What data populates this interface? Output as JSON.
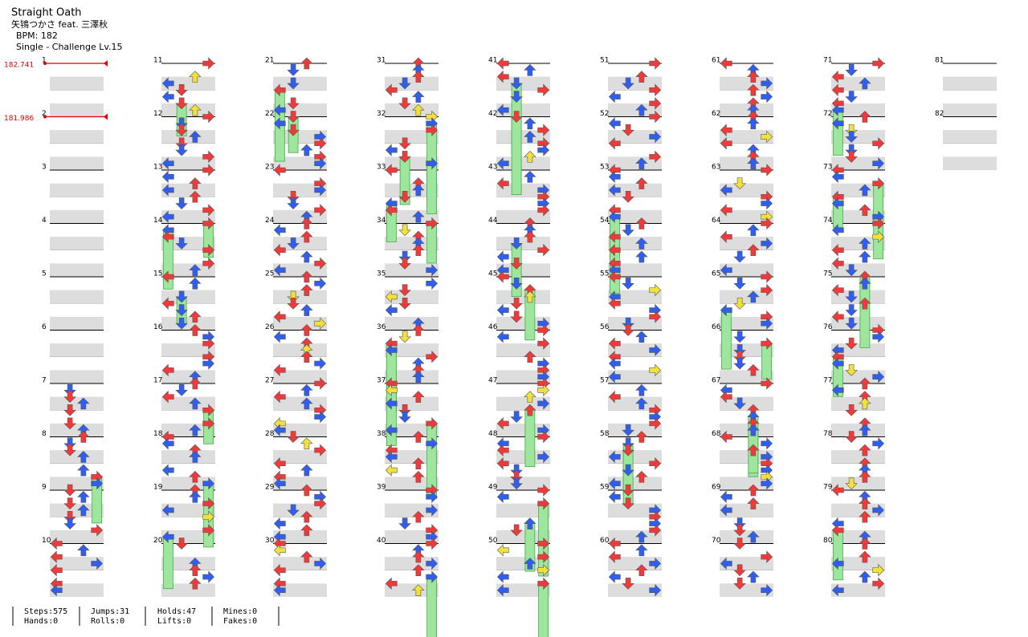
{
  "header": {
    "title": "Straight Oath",
    "artist": "矢鴇つかさ feat. 三澤秋",
    "bpm": "BPM: 182",
    "chart": "Single - Challenge  Lv.15"
  },
  "bpm_changes": [
    "182.741",
    "181.986"
  ],
  "measures": [
    1,
    2,
    3,
    4,
    5,
    6,
    7,
    8,
    9,
    10,
    11,
    12,
    13,
    14,
    15,
    16,
    17,
    18,
    19,
    20,
    21,
    22,
    23,
    24,
    25,
    26,
    27,
    28,
    29,
    30,
    31,
    32,
    33,
    34,
    35,
    36,
    37,
    38,
    39,
    40,
    41,
    42,
    43,
    44,
    45,
    46,
    47,
    48,
    49,
    50,
    51,
    52,
    53,
    54,
    55,
    56,
    57,
    58,
    59,
    60,
    61,
    62,
    63,
    64,
    65,
    66,
    67,
    68,
    69,
    70,
    71,
    72,
    73,
    74,
    75,
    76,
    77,
    78,
    79,
    80,
    81,
    82
  ],
  "stats": [
    [
      "Steps:575",
      "Hands:0"
    ],
    [
      "Jumps:31",
      "Rolls:0"
    ],
    [
      "Holds:47",
      "Lifts:0"
    ],
    [
      "Mines:0",
      "Fakes:0"
    ]
  ]
}
